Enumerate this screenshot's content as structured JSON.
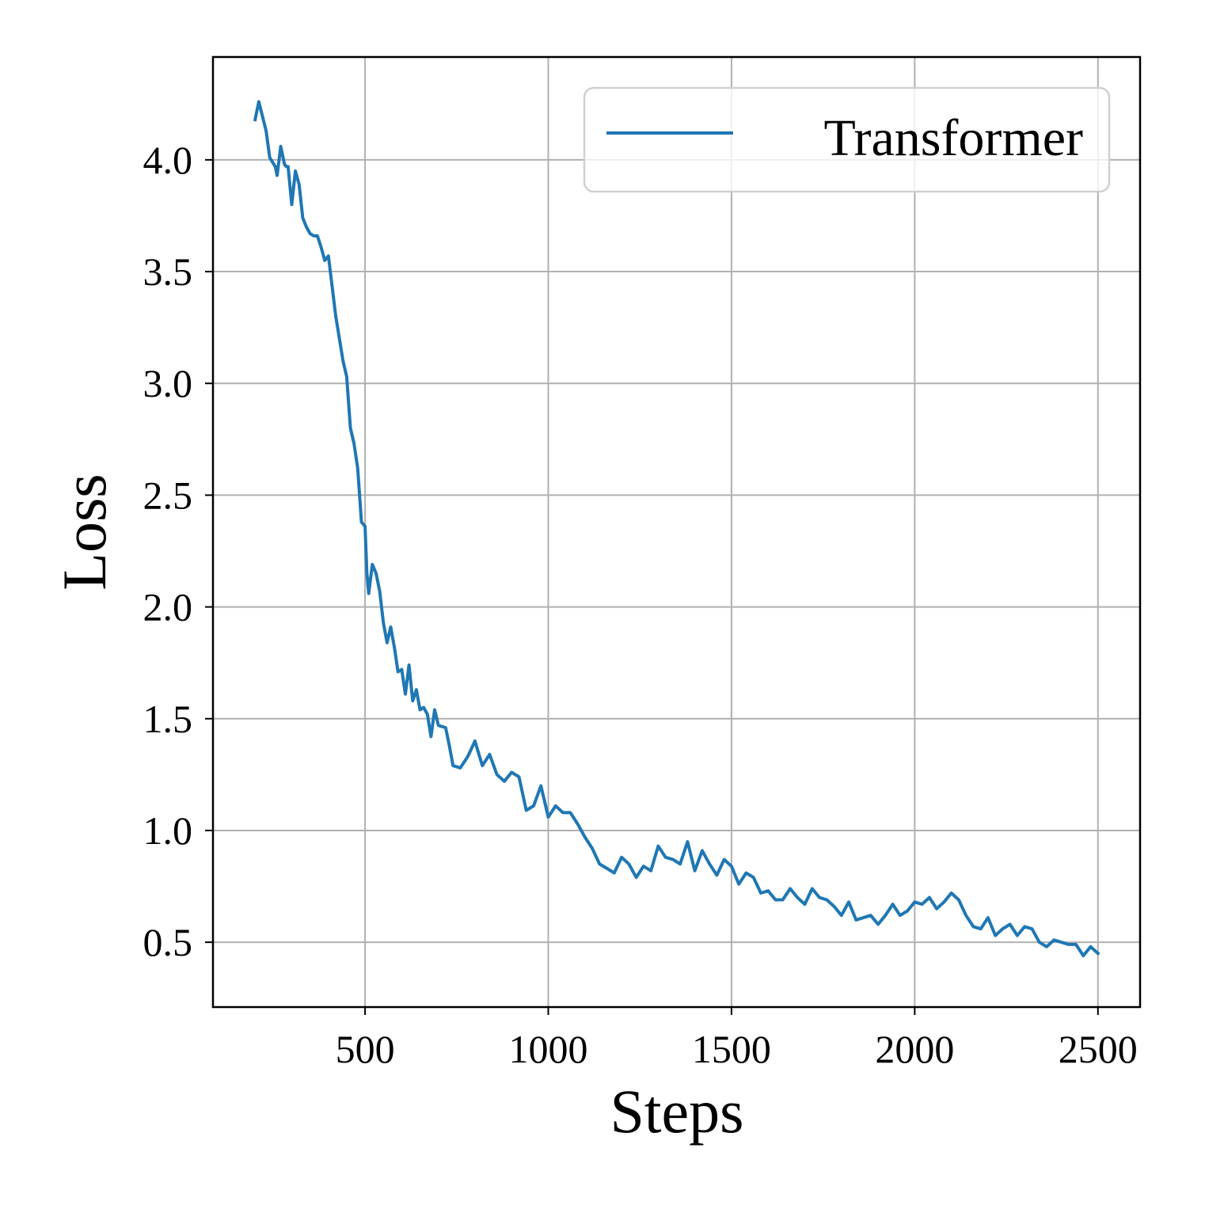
{
  "chart_data": {
    "type": "line",
    "xlabel": "Steps",
    "ylabel": "Loss",
    "xlim": [
      85,
      2615
    ],
    "ylim": [
      0.21,
      4.46
    ],
    "xticks": [
      500,
      1000,
      1500,
      2000,
      2500
    ],
    "yticks": [
      0.5,
      1.0,
      1.5,
      2.0,
      2.5,
      3.0,
      3.5,
      4.0
    ],
    "grid": true,
    "legend_position": "top-right",
    "series": [
      {
        "name": "Transformer",
        "color": "#1f77b4",
        "x": [
          200,
          210,
          230,
          240,
          255,
          260,
          270,
          280,
          285,
          290,
          300,
          310,
          320,
          330,
          340,
          350,
          360,
          370,
          380,
          390,
          400,
          420,
          440,
          450,
          460,
          470,
          480,
          490,
          500,
          505,
          510,
          520,
          530,
          540,
          550,
          560,
          570,
          580,
          590,
          600,
          610,
          620,
          630,
          640,
          650,
          660,
          670,
          680,
          690,
          700,
          720,
          730,
          740,
          760,
          780,
          800,
          820,
          840,
          860,
          880,
          900,
          920,
          940,
          960,
          980,
          1000,
          1020,
          1040,
          1060,
          1080,
          1100,
          1120,
          1140,
          1160,
          1180,
          1200,
          1220,
          1240,
          1260,
          1280,
          1300,
          1320,
          1340,
          1360,
          1380,
          1400,
          1420,
          1440,
          1460,
          1480,
          1500,
          1520,
          1540,
          1560,
          1580,
          1600,
          1620,
          1640,
          1660,
          1680,
          1700,
          1720,
          1740,
          1760,
          1780,
          1800,
          1820,
          1840,
          1860,
          1880,
          1900,
          1920,
          1940,
          1960,
          1980,
          2000,
          2020,
          2040,
          2060,
          2080,
          2100,
          2120,
          2140,
          2160,
          2180,
          2200,
          2220,
          2240,
          2260,
          2280,
          2300,
          2320,
          2340,
          2360,
          2380,
          2400,
          2420,
          2440,
          2460,
          2480,
          2500
        ],
        "y": [
          4.18,
          4.26,
          4.13,
          4.01,
          3.97,
          3.93,
          4.06,
          3.98,
          3.97,
          3.97,
          3.8,
          3.95,
          3.89,
          3.74,
          3.7,
          3.67,
          3.66,
          3.66,
          3.61,
          3.55,
          3.57,
          3.3,
          3.1,
          3.03,
          2.8,
          2.73,
          2.62,
          2.38,
          2.36,
          2.15,
          2.06,
          2.19,
          2.15,
          2.07,
          1.93,
          1.84,
          1.91,
          1.82,
          1.71,
          1.72,
          1.61,
          1.74,
          1.58,
          1.63,
          1.54,
          1.55,
          1.52,
          1.42,
          1.54,
          1.47,
          1.46,
          1.38,
          1.29,
          1.28,
          1.33,
          1.4,
          1.29,
          1.34,
          1.25,
          1.22,
          1.26,
          1.24,
          1.09,
          1.11,
          1.2,
          1.06,
          1.11,
          1.08,
          1.08,
          1.03,
          0.97,
          0.92,
          0.85,
          0.83,
          0.81,
          0.88,
          0.85,
          0.79,
          0.84,
          0.82,
          0.93,
          0.88,
          0.87,
          0.85,
          0.95,
          0.82,
          0.91,
          0.85,
          0.8,
          0.87,
          0.84,
          0.76,
          0.81,
          0.79,
          0.72,
          0.73,
          0.69,
          0.69,
          0.74,
          0.7,
          0.67,
          0.74,
          0.7,
          0.69,
          0.66,
          0.62,
          0.68,
          0.6,
          0.61,
          0.62,
          0.58,
          0.62,
          0.67,
          0.62,
          0.64,
          0.68,
          0.67,
          0.7,
          0.65,
          0.68,
          0.72,
          0.69,
          0.62,
          0.57,
          0.56,
          0.61,
          0.53,
          0.56,
          0.58,
          0.53,
          0.57,
          0.56,
          0.5,
          0.48,
          0.51,
          0.5,
          0.49,
          0.49,
          0.44,
          0.48,
          0.45
        ]
      }
    ]
  }
}
